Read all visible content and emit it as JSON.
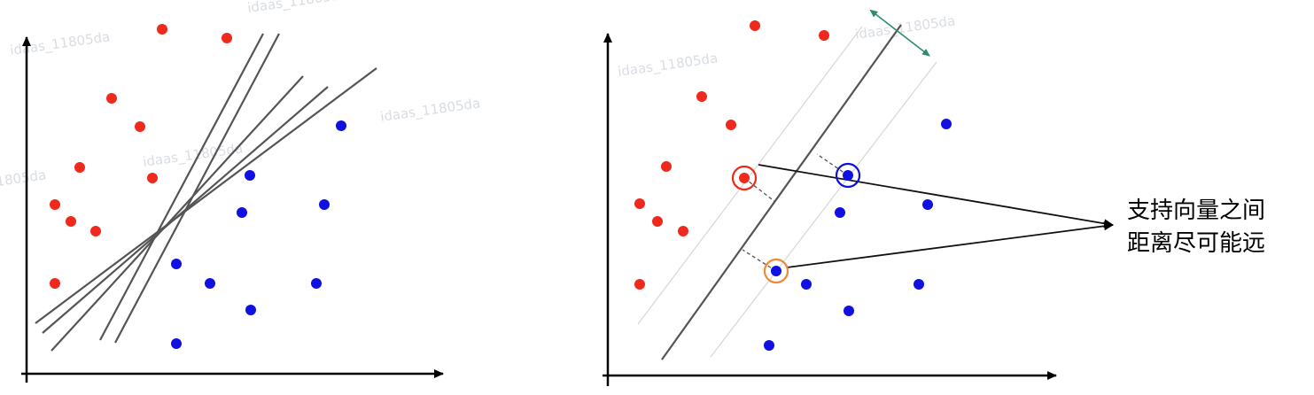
{
  "colors": {
    "red_point": "#ee2a1c",
    "blue_point": "#1010e0",
    "axis": "#000000",
    "separator": "#555555",
    "margin_line": "#d9d9d9",
    "margin_arrow": "#2e8b6f",
    "sv_red_ring": "#ee2a1c",
    "sv_blue_ring": "#1010e0",
    "sv_orange_ring": "#f0883a",
    "pointer": "#111111",
    "watermark": "#d9dde3"
  },
  "watermark_text": "idaas_11805da",
  "annotation": {
    "line1": "支持向量之间",
    "line2": "距离尽可能远"
  },
  "left_panel": {
    "red_points": [
      [
        183,
        33
      ],
      [
        256,
        43
      ],
      [
        126,
        111
      ],
      [
        158,
        143
      ],
      [
        90,
        189
      ],
      [
        172,
        201
      ],
      [
        62,
        231
      ],
      [
        80,
        250
      ],
      [
        108,
        261
      ],
      [
        62,
        320
      ]
    ],
    "blue_points": [
      [
        385,
        142
      ],
      [
        282,
        198
      ],
      [
        273,
        240
      ],
      [
        366,
        231
      ],
      [
        199,
        298
      ],
      [
        237,
        320
      ],
      [
        357,
        320
      ],
      [
        283,
        350
      ],
      [
        199,
        388
      ]
    ]
  },
  "right_panel": {
    "red_points": [
      [
        852,
        29
      ],
      [
        930,
        40
      ],
      [
        792,
        109
      ],
      [
        825,
        141
      ],
      [
        752,
        188
      ],
      [
        840,
        201
      ],
      [
        722,
        230
      ],
      [
        742,
        250
      ],
      [
        771,
        261
      ],
      [
        722,
        321
      ]
    ],
    "blue_points": [
      [
        1068,
        140
      ],
      [
        957,
        198
      ],
      [
        1047,
        231
      ],
      [
        948,
        240
      ],
      [
        910,
        321
      ],
      [
        1037,
        321
      ],
      [
        958,
        351
      ],
      [
        876,
        306
      ],
      [
        868,
        390
      ]
    ],
    "support_vectors": [
      {
        "color_key": "sv_red_ring",
        "point": [
          840,
          201
        ]
      },
      {
        "color_key": "sv_blue_ring",
        "point": [
          957,
          198
        ]
      },
      {
        "color_key": "sv_orange_ring",
        "point": [
          876,
          306
        ]
      }
    ]
  }
}
